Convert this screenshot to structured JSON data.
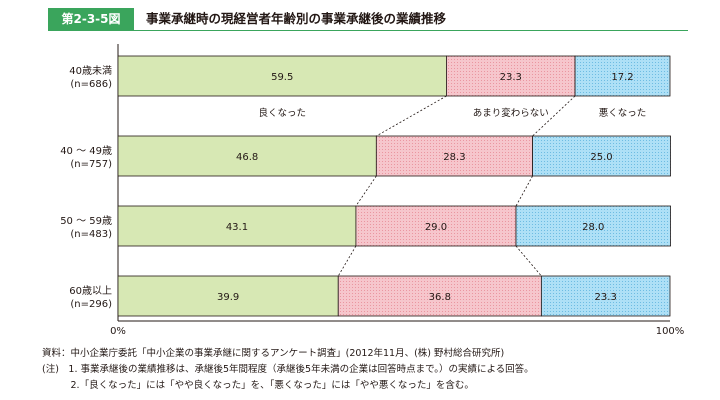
{
  "header": {
    "figure_label": "第2-3-5図",
    "title": "事業承継時の現経営者年齢別の事業承継後の業績推移"
  },
  "chart_data": {
    "type": "bar",
    "orientation": "horizontal",
    "stacked": true,
    "percent": true,
    "categories": [
      {
        "label": "40歳未満",
        "n": "(n=686)"
      },
      {
        "label": "40 ～ 49歳",
        "n": "(n=757)"
      },
      {
        "label": "50 ～ 59歳",
        "n": "(n=483)"
      },
      {
        "label": "60歳以上",
        "n": "(n=296)"
      }
    ],
    "series": [
      {
        "name": "良くなった",
        "values": [
          59.5,
          46.8,
          43.1,
          39.9
        ],
        "color": "#d7e8b4",
        "pattern": "none"
      },
      {
        "name": "あまり変わらない",
        "values": [
          23.3,
          28.3,
          29.0,
          36.8
        ],
        "color": "#f6c6cc",
        "pattern": "dots"
      },
      {
        "name": "悪くなった",
        "values": [
          17.2,
          25.0,
          28.0,
          23.3
        ],
        "color": "#aee0f6",
        "pattern": "dots"
      }
    ],
    "value_labels": [
      [
        "59.5",
        "23.3",
        "17.2"
      ],
      [
        "46.8",
        "28.3",
        "25.0"
      ],
      [
        "43.1",
        "29.0",
        "28.0"
      ],
      [
        "39.9",
        "36.8",
        "23.3"
      ]
    ],
    "x_axis": {
      "min": 0,
      "max": 100,
      "tick_labels": [
        "0%",
        "100%"
      ]
    },
    "legend": "inline-below-first-bar",
    "connector_lines": "dashed"
  },
  "notes": [
    "資料：中小企業庁委託「中小企業の事業承継に関するアンケート調査」(2012年11月、(株) 野村総合研究所)",
    "(注)　1. 事業承継後の業績推移は、承継後5年間程度（承継後5年未満の企業は回答時点まで。）の実績による回答。",
    "　　　2.「良くなった」には「やや良くなった」を、「悪くなった」には「やや悪くなった」を含む。"
  ]
}
